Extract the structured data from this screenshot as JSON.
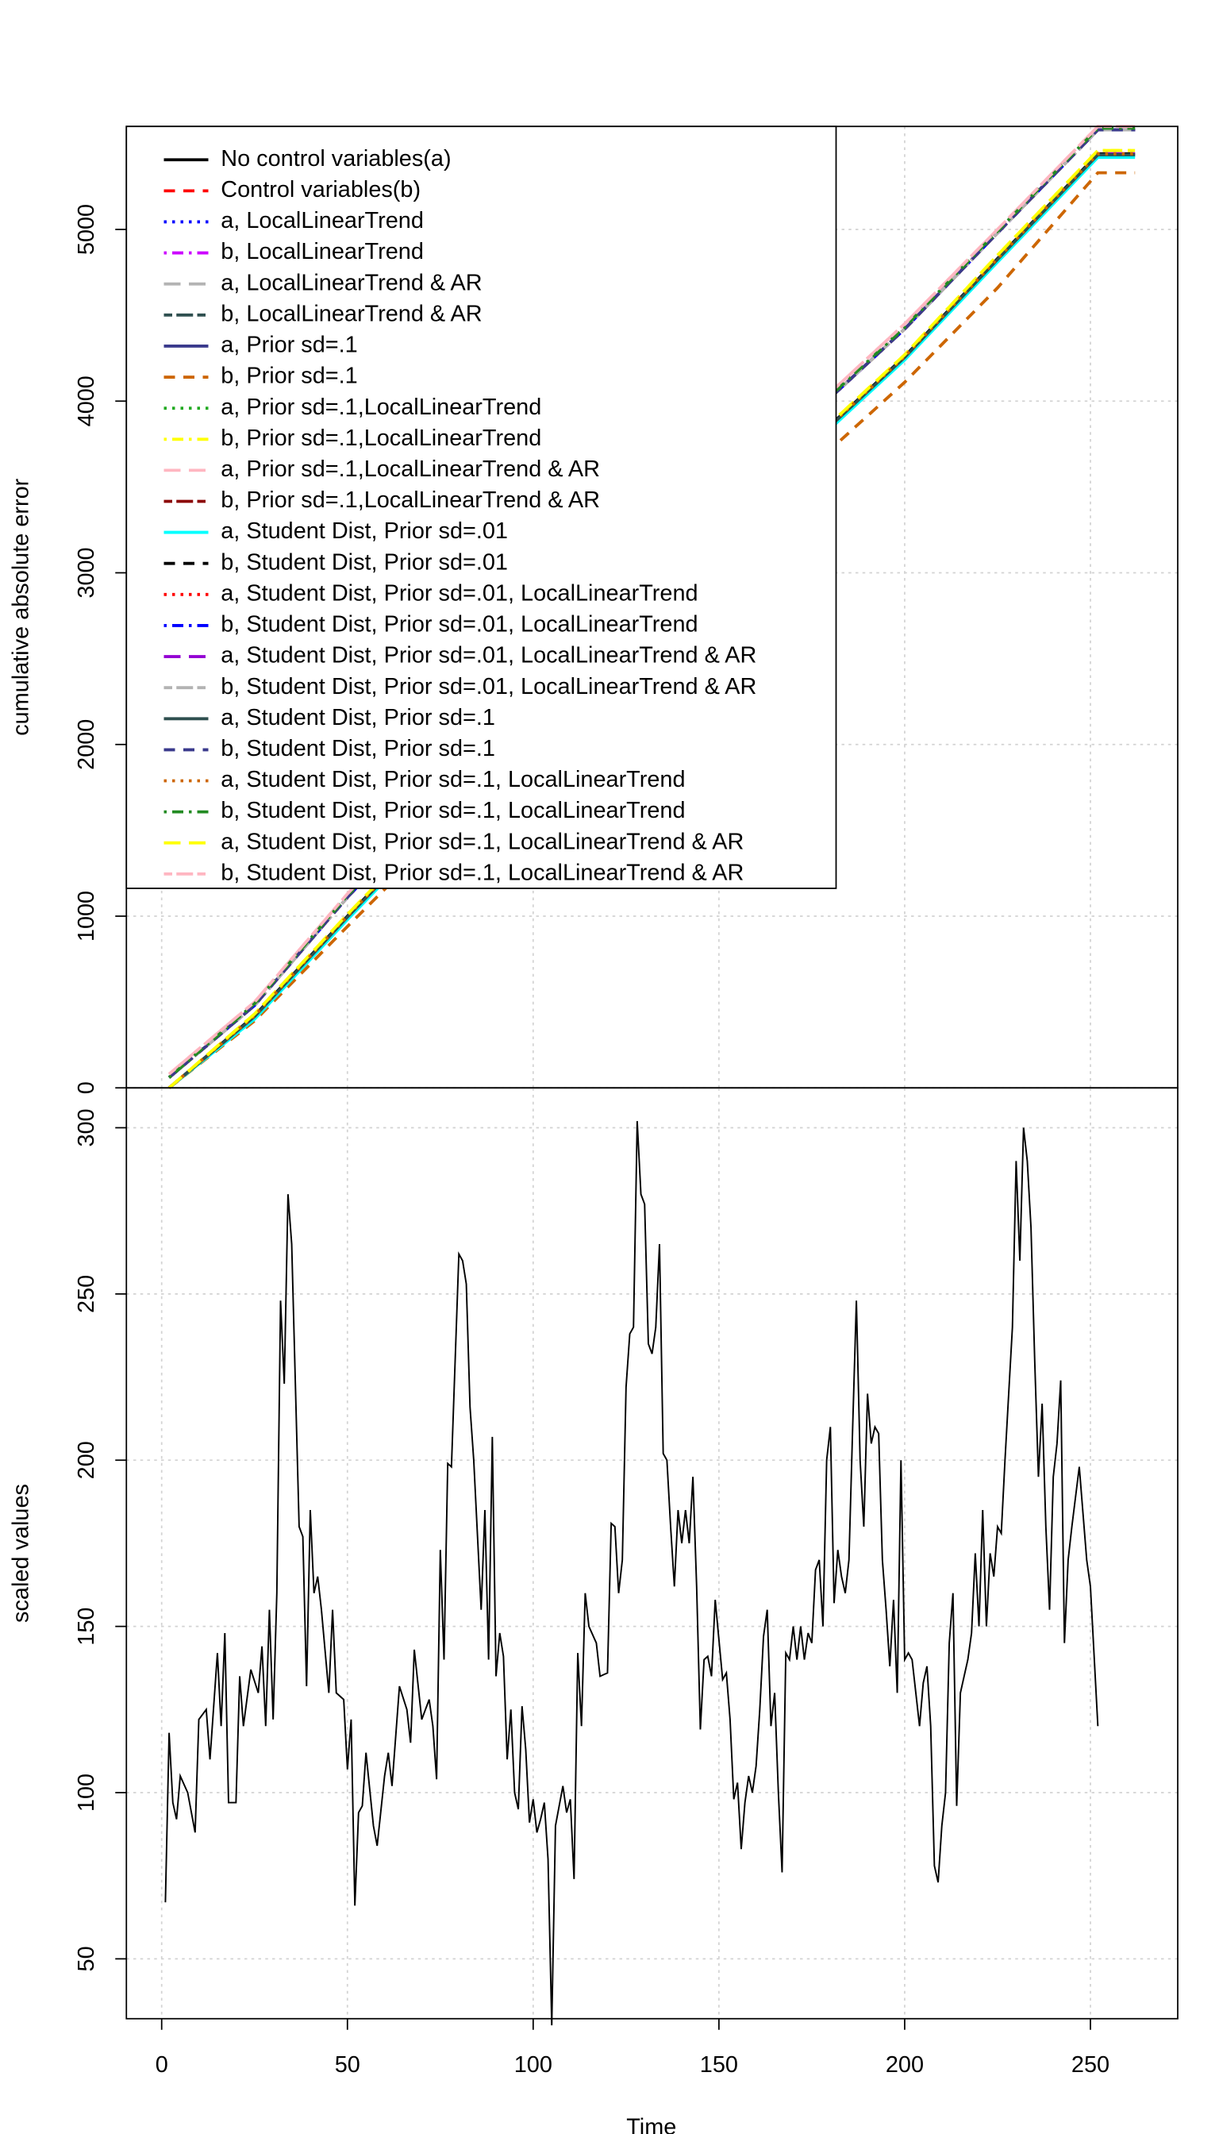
{
  "chart_data": [
    {
      "type": "line",
      "y_label": "cumulative absolute error",
      "x": [
        2,
        25,
        50,
        75,
        100,
        125,
        150,
        175,
        200,
        225,
        252,
        262
      ],
      "xlim": [
        -9.5,
        273.5
      ],
      "ylim": [
        0,
        5600
      ],
      "yticks": [
        0,
        1000,
        2000,
        3000,
        4000,
        5000
      ],
      "grid": true,
      "legend": "top-left",
      "series": [
        {
          "name": "No control variables(a)",
          "color": "#000000",
          "dash": "solid",
          "values": [
            0,
            420,
            1000,
            1560,
            2110,
            2660,
            3210,
            3760,
            4260,
            4830,
            5440,
            5440
          ]
        },
        {
          "name": "Control variables(b)",
          "color": "#ff0000",
          "dash": "dashed",
          "values": [
            60,
            480,
            1110,
            1680,
            2250,
            2820,
            3370,
            3920,
            4420,
            4980,
            5580,
            5580
          ]
        },
        {
          "name": "a, LocalLinearTrend",
          "color": "#0000ff",
          "dash": "dotted",
          "values": [
            0,
            420,
            1000,
            1560,
            2110,
            2660,
            3210,
            3760,
            4260,
            4830,
            5440,
            5440
          ]
        },
        {
          "name": "b, LocalLinearTrend",
          "color": "#cc00ff",
          "dash": "dotdash",
          "values": [
            60,
            480,
            1110,
            1680,
            2250,
            2820,
            3370,
            3920,
            4420,
            4980,
            5580,
            5580
          ]
        },
        {
          "name": "a, LocalLinearTrend & AR",
          "color": "#b3b3b3",
          "dash": "longdash",
          "values": [
            0,
            420,
            1000,
            1560,
            2110,
            2660,
            3210,
            3760,
            4260,
            4830,
            5440,
            5440
          ]
        },
        {
          "name": "b, LocalLinearTrend & AR",
          "color": "#2f4f4f",
          "dash": "twodash",
          "values": [
            60,
            480,
            1110,
            1680,
            2250,
            2820,
            3370,
            3920,
            4420,
            4980,
            5580,
            5580
          ]
        },
        {
          "name": "a, Prior sd=.1",
          "color": "#3a3a8c",
          "dash": "solid",
          "values": [
            0,
            410,
            990,
            1550,
            2100,
            2650,
            3200,
            3750,
            4250,
            4820,
            5430,
            5430
          ]
        },
        {
          "name": "b, Prior sd=.1",
          "color": "#cd6600",
          "dash": "dashed",
          "values": [
            0,
            390,
            940,
            1480,
            2020,
            2560,
            3090,
            3620,
            4110,
            4660,
            5330,
            5330
          ]
        },
        {
          "name": "a, Prior sd=.1,LocalLinearTrend",
          "color": "#22aa22",
          "dash": "dotted",
          "values": [
            60,
            490,
            1120,
            1690,
            2260,
            2830,
            3380,
            3930,
            4430,
            4990,
            5590,
            5590
          ]
        },
        {
          "name": "b, Prior sd=.1,LocalLinearTrend",
          "color": "#ffff00",
          "dash": "dotdash",
          "values": [
            0,
            430,
            1010,
            1570,
            2120,
            2670,
            3220,
            3770,
            4270,
            4850,
            5460,
            5460
          ]
        },
        {
          "name": "a, Prior sd=.1,LocalLinearTrend & AR",
          "color": "#ffb6c1",
          "dash": "longdash",
          "values": [
            80,
            500,
            1130,
            1700,
            2280,
            2850,
            3400,
            3950,
            4450,
            5000,
            5600,
            5600
          ]
        },
        {
          "name": "b, Prior sd=.1,LocalLinearTrend & AR",
          "color": "#8b0000",
          "dash": "twodash",
          "values": [
            60,
            480,
            1110,
            1680,
            2250,
            2820,
            3370,
            3920,
            4420,
            4980,
            5580,
            5580
          ]
        },
        {
          "name": "a, Student Dist, Prior sd=.01",
          "color": "#00ffff",
          "dash": "solid",
          "values": [
            0,
            400,
            980,
            1540,
            2090,
            2640,
            3190,
            3740,
            4240,
            4810,
            5420,
            5420
          ]
        },
        {
          "name": "b, Student Dist, Prior sd=.01",
          "color": "#000000",
          "dash": "dashed",
          "values": [
            60,
            480,
            1110,
            1680,
            2250,
            2820,
            3370,
            3920,
            4420,
            4980,
            5580,
            5580
          ]
        },
        {
          "name": "a, Student Dist, Prior sd=.01, LocalLinearTrend",
          "color": "#ff0000",
          "dash": "dotted",
          "values": [
            0,
            420,
            1000,
            1560,
            2110,
            2660,
            3210,
            3760,
            4260,
            4830,
            5440,
            5440
          ]
        },
        {
          "name": "b, Student Dist, Prior sd=.01, LocalLinearTrend",
          "color": "#0000ff",
          "dash": "dotdash",
          "values": [
            60,
            480,
            1110,
            1680,
            2250,
            2820,
            3370,
            3920,
            4420,
            4980,
            5580,
            5580
          ]
        },
        {
          "name": "a, Student Dist, Prior sd=.01, LocalLinearTrend & AR",
          "color": "#9400d3",
          "dash": "longdash",
          "values": [
            0,
            420,
            1000,
            1560,
            2110,
            2660,
            3210,
            3760,
            4260,
            4830,
            5440,
            5440
          ]
        },
        {
          "name": "b, Student Dist, Prior sd=.01, LocalLinearTrend & AR",
          "color": "#b3b3b3",
          "dash": "twodash",
          "values": [
            60,
            480,
            1110,
            1680,
            2250,
            2820,
            3370,
            3920,
            4420,
            4980,
            5580,
            5580
          ]
        },
        {
          "name": "a, Student Dist, Prior sd=.1",
          "color": "#2f4f4f",
          "dash": "solid",
          "values": [
            0,
            415,
            995,
            1555,
            2105,
            2655,
            3205,
            3755,
            4255,
            4825,
            5435,
            5435
          ]
        },
        {
          "name": "b, Student Dist, Prior sd=.1",
          "color": "#3a3a8c",
          "dash": "dashed",
          "values": [
            60,
            480,
            1110,
            1680,
            2250,
            2820,
            3370,
            3920,
            4420,
            4980,
            5580,
            5580
          ]
        },
        {
          "name": "a, Student Dist, Prior sd=.1, LocalLinearTrend",
          "color": "#cd6600",
          "dash": "dotted",
          "values": [
            0,
            420,
            1000,
            1560,
            2110,
            2660,
            3210,
            3760,
            4260,
            4830,
            5440,
            5440
          ]
        },
        {
          "name": "b, Student Dist, Prior sd=.1, LocalLinearTrend",
          "color": "#228b22",
          "dash": "dotdash",
          "values": [
            60,
            490,
            1120,
            1690,
            2260,
            2830,
            3380,
            3930,
            4430,
            4990,
            5590,
            5590
          ]
        },
        {
          "name": "a, Student Dist, Prior sd=.1, LocalLinearTrend & AR",
          "color": "#ffff00",
          "dash": "longdash",
          "values": [
            0,
            430,
            1010,
            1570,
            2120,
            2670,
            3220,
            3770,
            4270,
            4850,
            5460,
            5460
          ]
        },
        {
          "name": "b, Student Dist, Prior sd=.1, LocalLinearTrend & AR",
          "color": "#ffb6c1",
          "dash": "twodash",
          "values": [
            80,
            500,
            1130,
            1700,
            2280,
            2850,
            3400,
            3950,
            4450,
            5000,
            5600,
            5600
          ]
        }
      ]
    },
    {
      "type": "line",
      "x_label": "Time",
      "y_label": "scaled values",
      "color": "#000000",
      "xlim": [
        -9.5,
        273.5
      ],
      "ylim": [
        32,
        312
      ],
      "xticks": [
        0,
        50,
        100,
        150,
        200,
        250
      ],
      "yticks": [
        50,
        100,
        150,
        200,
        250,
        300
      ],
      "grid": true,
      "x": [
        1,
        2,
        3,
        4,
        5,
        7,
        9,
        10,
        12,
        13,
        15,
        16,
        17,
        18,
        20,
        21,
        22,
        24,
        26,
        27,
        28,
        29,
        30,
        31,
        32,
        33,
        34,
        35,
        37,
        38,
        39,
        40,
        41,
        42,
        43,
        45,
        46,
        47,
        49,
        50,
        51,
        52,
        53,
        54,
        55,
        57,
        58,
        60,
        61,
        62,
        64,
        66,
        67,
        68,
        70,
        72,
        73,
        74,
        75,
        76,
        77,
        78,
        80,
        81,
        82,
        83,
        84,
        86,
        87,
        88,
        89,
        90,
        91,
        92,
        93,
        94,
        95,
        96,
        97,
        98,
        99,
        100,
        101,
        102,
        103,
        104,
        105,
        106,
        108,
        109,
        110,
        111,
        112,
        113,
        114,
        115,
        117,
        118,
        120,
        121,
        122,
        123,
        124,
        125,
        126,
        127,
        128,
        129,
        130,
        131,
        132,
        133,
        134,
        135,
        136,
        137,
        138,
        139,
        140,
        141,
        142,
        143,
        144,
        145,
        146,
        147,
        148,
        149,
        150,
        151,
        152,
        153,
        154,
        155,
        156,
        157,
        158,
        159,
        160,
        161,
        162,
        163,
        164,
        165,
        166,
        167,
        168,
        169,
        170,
        171,
        172,
        173,
        174,
        175,
        176,
        177,
        178,
        179,
        180,
        181,
        182,
        183,
        184,
        185,
        186,
        187,
        188,
        189,
        190,
        191,
        192,
        193,
        194,
        195,
        196,
        197,
        198,
        199,
        200,
        201,
        202,
        203,
        204,
        205,
        206,
        207,
        208,
        209,
        210,
        211,
        212,
        213,
        214,
        215,
        216,
        217,
        218,
        219,
        220,
        221,
        222,
        223,
        224,
        225,
        226,
        227,
        228,
        229,
        230,
        231,
        232,
        233,
        234,
        235,
        236,
        237,
        238,
        239,
        240,
        241,
        242,
        243,
        244,
        245,
        247,
        249,
        250,
        252
      ],
      "values": [
        67,
        118,
        97,
        92,
        105,
        100,
        88,
        122,
        125,
        110,
        142,
        120,
        148,
        97,
        97,
        135,
        120,
        137,
        130,
        144,
        120,
        155,
        122,
        160,
        248,
        223,
        280,
        265,
        180,
        177,
        132,
        185,
        160,
        165,
        155,
        130,
        155,
        130,
        128,
        107,
        122,
        66,
        94,
        96,
        112,
        90,
        84,
        105,
        112,
        102,
        132,
        125,
        115,
        143,
        122,
        128,
        120,
        104,
        173,
        140,
        199,
        198,
        262,
        260,
        253,
        216,
        200,
        155,
        185,
        140,
        207,
        135,
        148,
        141,
        110,
        125,
        100,
        95,
        126,
        113,
        91,
        98,
        88,
        92,
        97,
        80,
        30,
        90,
        102,
        94,
        98,
        74,
        142,
        120,
        160,
        150,
        145,
        135,
        136,
        181,
        180,
        160,
        170,
        222,
        238,
        240,
        302,
        280,
        277,
        235,
        232,
        240,
        265,
        202,
        200,
        180,
        162,
        185,
        175,
        185,
        175,
        195,
        162,
        119,
        140,
        141,
        135,
        158,
        146,
        134,
        136,
        122,
        98,
        103,
        83,
        97,
        105,
        100,
        108,
        125,
        147,
        155,
        120,
        130,
        100,
        76,
        142,
        140,
        150,
        140,
        150,
        140,
        148,
        145,
        167,
        170,
        150,
        200,
        210,
        157,
        173,
        165,
        160,
        170,
        210,
        248,
        200,
        180,
        220,
        205,
        210,
        208,
        170,
        155,
        138,
        158,
        130,
        200,
        140,
        142,
        140,
        130,
        120,
        133,
        138,
        120,
        78,
        73,
        90,
        100,
        145,
        160,
        96,
        130,
        135,
        140,
        148,
        172,
        150,
        185,
        150,
        172,
        165,
        180,
        178,
        200,
        220,
        240,
        290,
        260,
        300,
        290,
        270,
        230,
        195,
        217,
        180,
        155,
        195,
        205,
        224,
        145,
        170,
        180,
        198,
        170,
        162,
        120
      ]
    }
  ]
}
